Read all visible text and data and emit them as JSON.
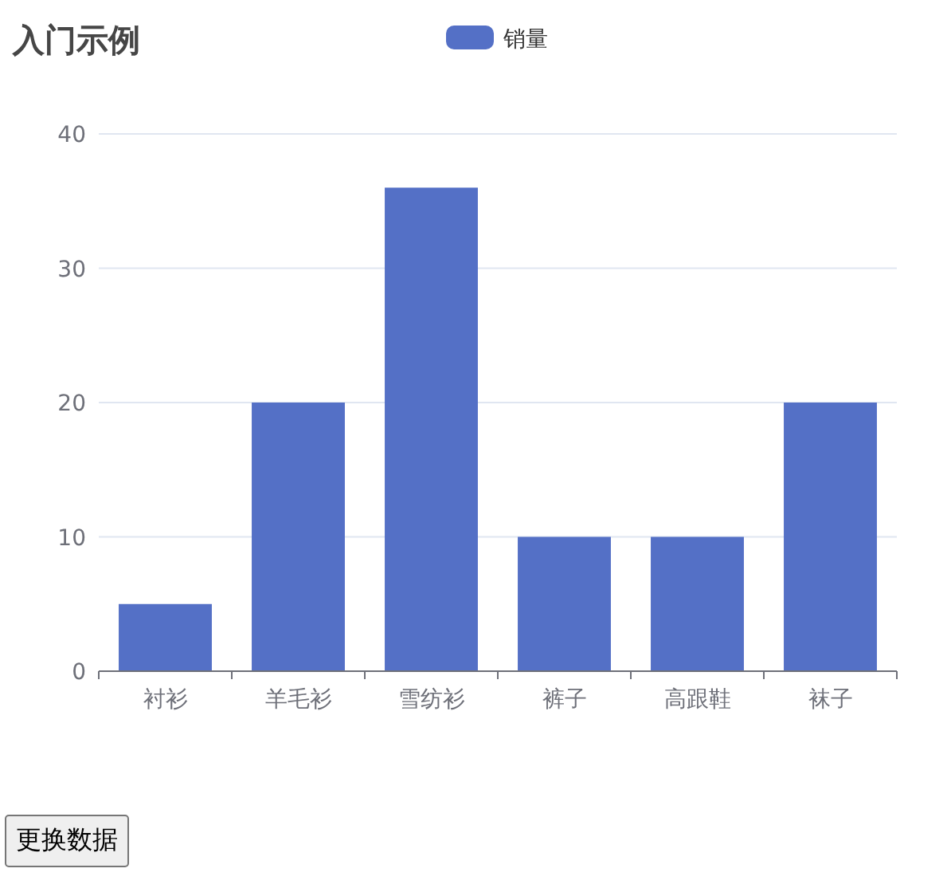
{
  "chart_data": {
    "type": "bar",
    "title": "入门示例",
    "categories": [
      "衬衫",
      "羊毛衫",
      "雪纺衫",
      "裤子",
      "高跟鞋",
      "袜子"
    ],
    "series": [
      {
        "name": "销量",
        "color": "#5470c6",
        "values": [
          5,
          20,
          36,
          10,
          10,
          20
        ]
      }
    ],
    "ylim": [
      0,
      40
    ],
    "yticks": [
      0,
      10,
      20,
      30,
      40
    ],
    "grid": "y",
    "legend": "top",
    "annotations": [
      "更换数据"
    ]
  }
}
